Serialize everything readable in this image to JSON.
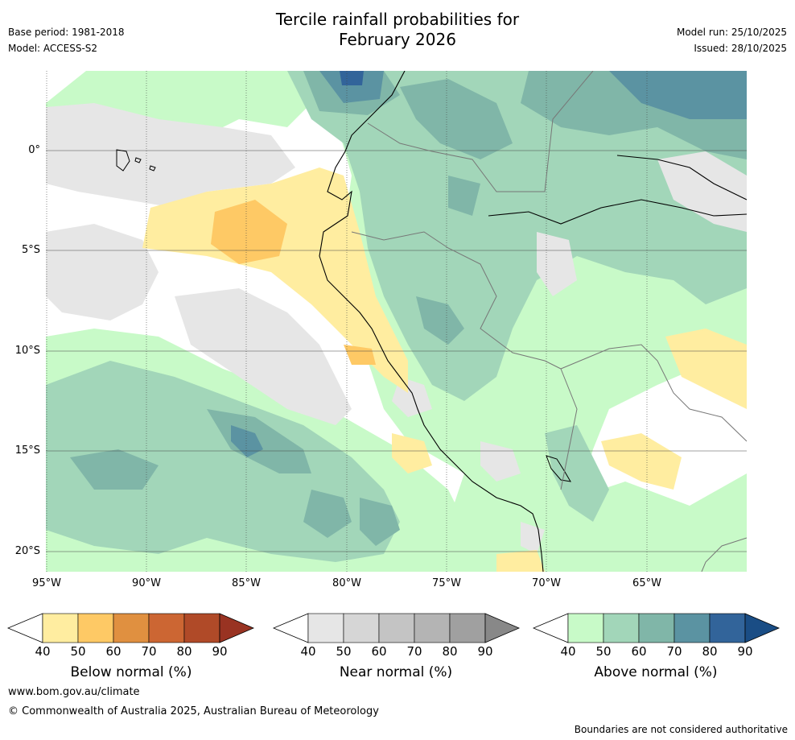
{
  "title": {
    "line1": "Tercile rainfall probabilities for",
    "line2": "February 2026"
  },
  "meta_left": {
    "base_period": "Base period: 1981-2018",
    "model": "Model: ACCESS-S2"
  },
  "meta_right": {
    "model_run": "Model run: 25/10/2025",
    "issued": "Issued: 28/10/2025"
  },
  "axes": {
    "lat_labels": [
      "0°",
      "5°S",
      "10°S",
      "15°S",
      "20°S"
    ],
    "lon_labels": [
      "95°W",
      "90°W",
      "85°W",
      "80°W",
      "75°W",
      "70°W",
      "65°W"
    ]
  },
  "colorbars": [
    {
      "title": "Below normal (%)",
      "ticks": [
        "40",
        "50",
        "60",
        "70",
        "80",
        "90"
      ],
      "colors": [
        "#ffeda0",
        "#fec965",
        "#e09040",
        "#cc6633",
        "#b04a28",
        "#993322"
      ]
    },
    {
      "title": "Near normal (%)",
      "ticks": [
        "40",
        "50",
        "60",
        "70",
        "80",
        "90"
      ],
      "colors": [
        "#e6e6e6",
        "#d6d6d6",
        "#c4c4c4",
        "#b4b4b4",
        "#a0a0a0",
        "#888888"
      ]
    },
    {
      "title": "Above normal (%)",
      "ticks": [
        "40",
        "50",
        "60",
        "70",
        "80",
        "90"
      ],
      "colors": [
        "#c8fac8",
        "#a2d6b9",
        "#80b6a8",
        "#5b93a2",
        "#32649a",
        "#1a4d85"
      ]
    }
  ],
  "map_colors": {
    "below_1": "#ffeda0",
    "below_2": "#fec965",
    "near_1": "#e6e6e6",
    "above_1": "#c8fac8",
    "above_2": "#a2d6b9",
    "above_3": "#80b6a8",
    "above_4": "#5b93a2",
    "above_5": "#32649a"
  },
  "footer": {
    "url": "www.bom.gov.au/climate",
    "copyright": "© Commonwealth of Australia 2025, Australian Bureau of Meteorology",
    "disclaimer": "Boundaries are not considered authoritative"
  }
}
